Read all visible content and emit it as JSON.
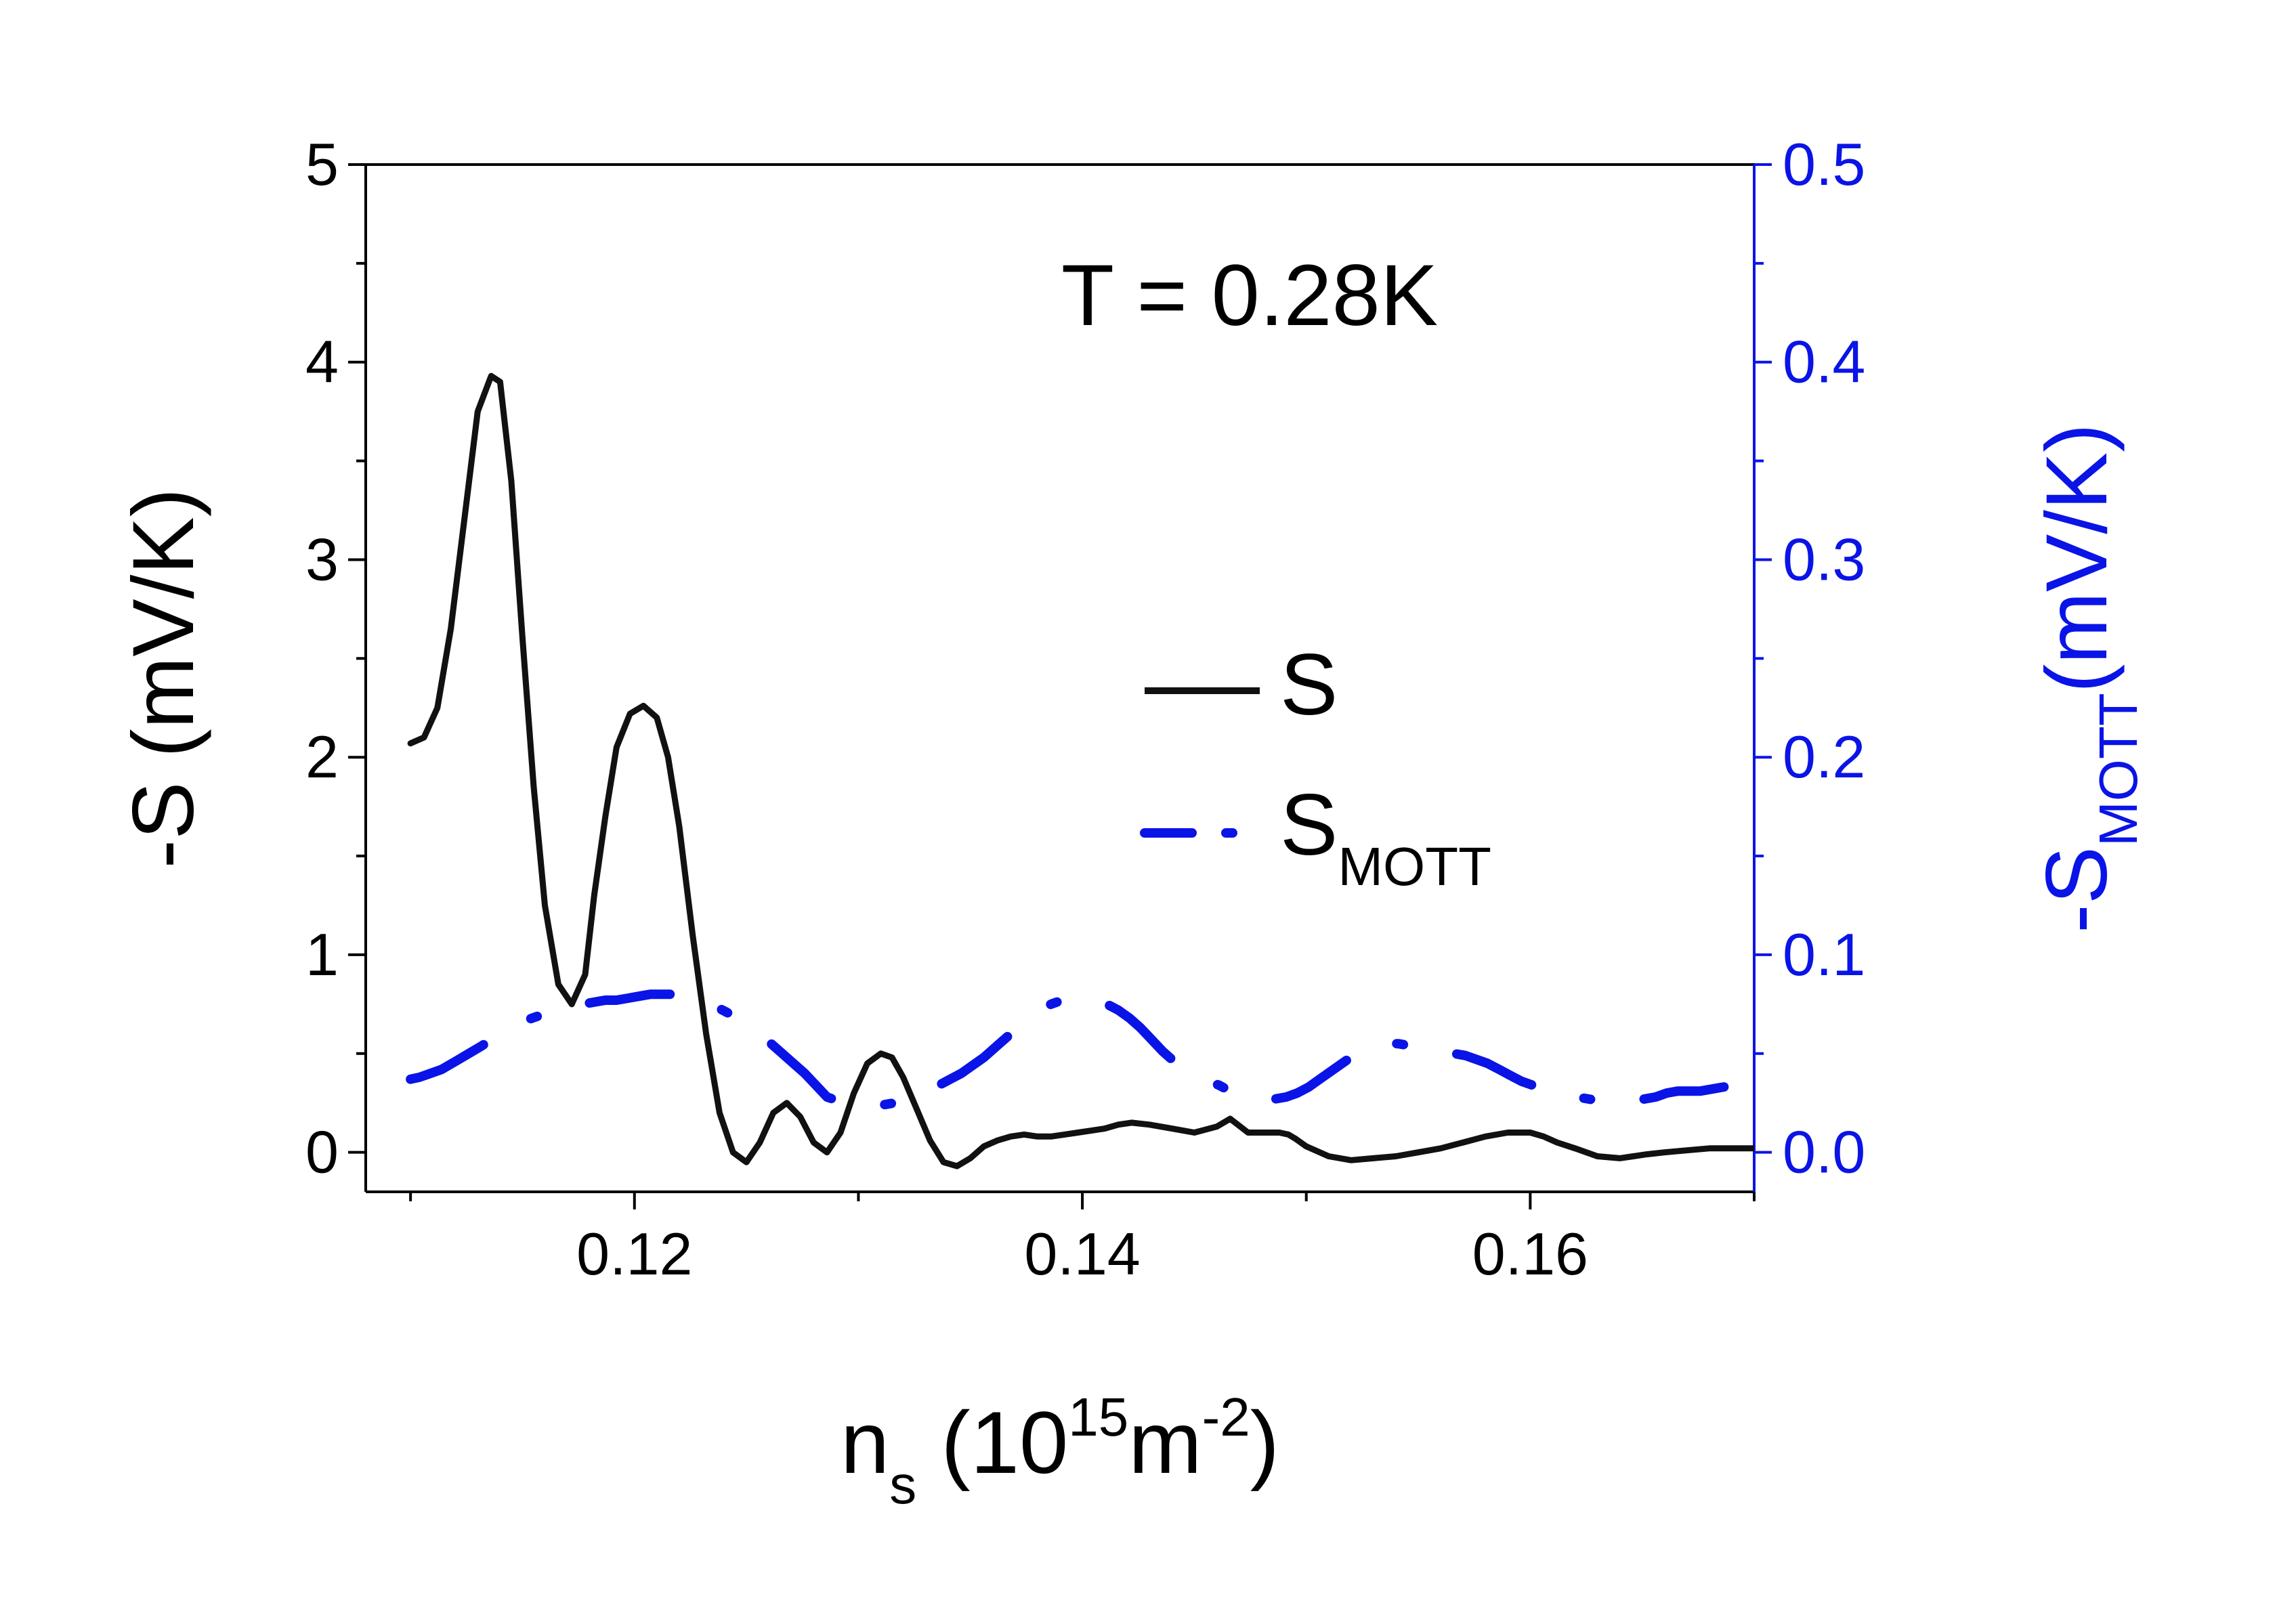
{
  "chart_data": {
    "type": "line",
    "annotation": "T = 0.28K",
    "x_axis": {
      "label_main": "n",
      "label_sub": "s",
      "label_open": " (10",
      "label_exp1": "15",
      "label_mid": "m",
      "label_exp2": "-2",
      "label_close": ")",
      "range": [
        0.108,
        0.17
      ],
      "ticks": [
        0.12,
        0.14,
        0.16
      ],
      "tick_labels": [
        "0.12",
        "0.14",
        "0.16"
      ]
    },
    "y_left": {
      "label": "-S (mV/K)",
      "range": [
        -0.2,
        5
      ],
      "ticks": [
        0,
        1,
        2,
        3,
        4,
        5
      ],
      "tick_labels": [
        "0",
        "1",
        "2",
        "3",
        "4",
        "5"
      ]
    },
    "y_right": {
      "label_main": "-S",
      "label_sub": "MOTT",
      "label_rest": "(mV/K)",
      "range": [
        -0.02,
        0.5
      ],
      "ticks": [
        0.0,
        0.1,
        0.2,
        0.3,
        0.4,
        0.5
      ],
      "tick_labels": [
        "0.0",
        "0.1",
        "0.2",
        "0.3",
        "0.4",
        "0.5"
      ],
      "color": "#0a14e6"
    },
    "legend": {
      "position": "center-right",
      "s_label": "S",
      "mott_label": "S",
      "mott_sub": "MOTT"
    },
    "series": [
      {
        "name": "S",
        "axis": "left",
        "color": "#111111",
        "style": "solid",
        "x": [
          0.11,
          0.1106,
          0.1112,
          0.1118,
          0.1124,
          0.113,
          0.1136,
          0.114,
          0.1145,
          0.115,
          0.1155,
          0.116,
          0.1166,
          0.1172,
          0.1178,
          0.1182,
          0.1187,
          0.1192,
          0.1198,
          0.1204,
          0.121,
          0.1215,
          0.122,
          0.1226,
          0.1232,
          0.1238,
          0.1244,
          0.125,
          0.1256,
          0.1262,
          0.1268,
          0.1274,
          0.128,
          0.1286,
          0.1292,
          0.1298,
          0.1304,
          0.131,
          0.1315,
          0.132,
          0.1326,
          0.1332,
          0.1338,
          0.1344,
          0.135,
          0.1356,
          0.1362,
          0.1368,
          0.1374,
          0.138,
          0.1386,
          0.1392,
          0.1398,
          0.1404,
          0.141,
          0.1416,
          0.1422,
          0.143,
          0.144,
          0.145,
          0.146,
          0.1466,
          0.1474,
          0.1482,
          0.1488,
          0.1492,
          0.1495,
          0.15,
          0.151,
          0.152,
          0.153,
          0.154,
          0.155,
          0.156,
          0.157,
          0.158,
          0.159,
          0.16,
          0.1606,
          0.1612,
          0.162,
          0.163,
          0.164,
          0.1646,
          0.1652,
          0.166,
          0.167,
          0.168,
          0.169,
          0.17
        ],
        "y": [
          2.07,
          2.1,
          2.25,
          2.65,
          3.2,
          3.75,
          3.93,
          3.9,
          3.4,
          2.6,
          1.85,
          1.25,
          0.85,
          0.75,
          0.9,
          1.3,
          1.7,
          2.05,
          2.22,
          2.26,
          2.2,
          2.0,
          1.65,
          1.1,
          0.6,
          0.2,
          0.0,
          -0.05,
          0.05,
          0.2,
          0.25,
          0.18,
          0.05,
          0.0,
          0.1,
          0.3,
          0.45,
          0.5,
          0.48,
          0.38,
          0.22,
          0.06,
          -0.05,
          -0.07,
          -0.03,
          0.03,
          0.06,
          0.08,
          0.09,
          0.08,
          0.08,
          0.09,
          0.1,
          0.11,
          0.12,
          0.14,
          0.15,
          0.14,
          0.12,
          0.1,
          0.13,
          0.17,
          0.1,
          0.1,
          0.1,
          0.09,
          0.07,
          0.03,
          -0.02,
          -0.04,
          -0.03,
          -0.02,
          0.0,
          0.02,
          0.05,
          0.08,
          0.1,
          0.1,
          0.08,
          0.05,
          0.02,
          -0.02,
          -0.03,
          -0.02,
          -0.01,
          0.0,
          0.01,
          0.02,
          0.02,
          0.02
        ]
      },
      {
        "name": "S_MOTT",
        "axis": "right",
        "color": "#0a14e6",
        "style": "dashed",
        "x": [
          0.11,
          0.1104,
          0.1109,
          0.1114,
          0.112,
          0.1126,
          0.1132,
          0.1137,
          0.1142,
          0.1147,
          0.1152,
          0.1157,
          0.1162,
          0.1167,
          0.1172,
          0.1177,
          0.1182,
          0.1187,
          0.1192,
          0.1197,
          0.1202,
          0.1207,
          0.1212,
          0.1217,
          0.1221,
          0.1226,
          0.1231,
          0.1236,
          0.1241,
          0.1246,
          0.1251,
          0.1256,
          0.1261,
          0.1266,
          0.1271,
          0.1276,
          0.1281,
          0.1286,
          0.1291,
          0.1296,
          0.1301,
          0.1306,
          0.1311,
          0.1316,
          0.1321,
          0.1326,
          0.1331,
          0.1336,
          0.1341,
          0.1346,
          0.1351,
          0.1356,
          0.1361,
          0.1366,
          0.1371,
          0.1376,
          0.1381,
          0.1386,
          0.1391,
          0.1396,
          0.1401,
          0.1406,
          0.1411,
          0.1416,
          0.1421,
          0.1426,
          0.1431,
          0.1436,
          0.1441,
          0.1446,
          0.1451,
          0.1456,
          0.1461,
          0.1466,
          0.1471,
          0.1476,
          0.1481,
          0.1486,
          0.1491,
          0.1496,
          0.1501,
          0.1506,
          0.1511,
          0.1516,
          0.1521,
          0.1526,
          0.1531,
          0.1536,
          0.1541,
          0.1546,
          0.1551,
          0.1556,
          0.1561,
          0.1566,
          0.1571,
          0.1576,
          0.1581,
          0.1586,
          0.1591,
          0.1596,
          0.1601,
          0.1606,
          0.1611,
          0.1616,
          0.1621,
          0.1626,
          0.1631,
          0.1636,
          0.1641,
          0.1646,
          0.1651,
          0.1656,
          0.1661,
          0.1666,
          0.1671,
          0.1676,
          0.1681,
          0.1686,
          0.1691,
          0.1696,
          0.17
        ],
        "y": [
          0.037,
          0.038,
          0.04,
          0.042,
          0.046,
          0.05,
          0.054,
          0.058,
          0.061,
          0.064,
          0.067,
          0.069,
          0.071,
          0.073,
          0.074,
          0.075,
          0.076,
          0.077,
          0.077,
          0.078,
          0.079,
          0.08,
          0.08,
          0.08,
          0.079,
          0.078,
          0.076,
          0.074,
          0.071,
          0.068,
          0.064,
          0.06,
          0.055,
          0.05,
          0.045,
          0.04,
          0.034,
          0.028,
          0.026,
          0.025,
          0.024,
          0.024,
          0.024,
          0.025,
          0.027,
          0.029,
          0.031,
          0.034,
          0.037,
          0.04,
          0.044,
          0.048,
          0.053,
          0.058,
          0.063,
          0.068,
          0.072,
          0.075,
          0.077,
          0.078,
          0.078,
          0.077,
          0.075,
          0.072,
          0.068,
          0.063,
          0.057,
          0.051,
          0.046,
          0.042,
          0.039,
          0.036,
          0.034,
          0.031,
          0.029,
          0.028,
          0.027,
          0.027,
          0.028,
          0.03,
          0.033,
          0.037,
          0.041,
          0.045,
          0.049,
          0.052,
          0.054,
          0.055,
          0.055,
          0.054,
          0.053,
          0.052,
          0.051,
          0.05,
          0.049,
          0.047,
          0.045,
          0.042,
          0.039,
          0.036,
          0.034,
          0.032,
          0.03,
          0.029,
          0.028,
          0.027,
          0.026,
          0.025,
          0.025,
          0.026,
          0.027,
          0.028,
          0.03,
          0.031,
          0.031,
          0.031,
          0.032,
          0.033,
          0.034,
          0.034,
          0.034
        ]
      }
    ]
  }
}
